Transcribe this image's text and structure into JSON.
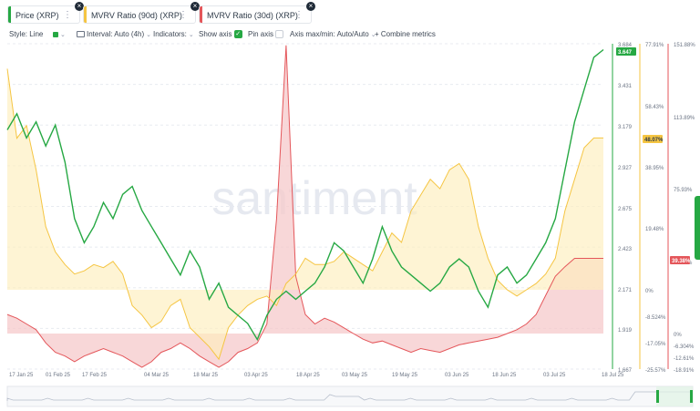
{
  "tabs": [
    {
      "label": "Price (XRP)",
      "color": "#26a843"
    },
    {
      "label": "MVRV Ratio (90d) (XRP)",
      "color": "#f5c542"
    },
    {
      "label": "MVRV Ratio (30d) (XRP)",
      "color": "#e4565a"
    }
  ],
  "toolbar": {
    "style": "Style: Line",
    "interval": "Interval: Auto (4h)",
    "indicators": "Indicators:",
    "show_axis": "Show axis",
    "pin_axis": "Pin axis",
    "axis_maxmin": "Axis max/min: Auto/Auto",
    "combine": "Combine metrics"
  },
  "watermark": "santiment",
  "chart_data": {
    "type": "line",
    "x_tick_labels": [
      "17 Jan 25",
      "01 Feb 25",
      "17 Feb 25",
      "04 Mar 25",
      "18 Mar 25",
      "03 Apr 25",
      "18 Apr 25",
      "03 May 25",
      "19 May 25",
      "03 Jun 25",
      "18 Jun 25",
      "03 Jul 25",
      "18 Jul 25"
    ],
    "axes": [
      {
        "name": "Price (XRP)",
        "color": "#26a843",
        "ticks": [
          "3.684",
          "3.431",
          "3.179",
          "2.927",
          "2.675",
          "2.423",
          "2.171",
          "1.919",
          "1.667"
        ],
        "range": [
          1.667,
          3.684
        ],
        "current_label": "3.647"
      },
      {
        "name": "MVRV Ratio (90d) (XRP)",
        "color": "#f5c542",
        "ticks": [
          "77.91%",
          "58.43%",
          "38.95%",
          "19.48%",
          "0%",
          "-8.524%",
          "-17.05%",
          "-25.57%"
        ],
        "current_label": "48.07%"
      },
      {
        "name": "MVRV Ratio (30d) (XRP)",
        "color": "#e4565a",
        "ticks": [
          "151.88%",
          "113.89%",
          "75.93%",
          "37.96%",
          "0%",
          "-6.304%",
          "-12.61%",
          "-18.91%"
        ],
        "current_label": "39.38%"
      }
    ],
    "series": [
      {
        "name": "Price (XRP)",
        "color": "#26a843",
        "values": [
          3.15,
          3.25,
          3.1,
          3.2,
          3.05,
          3.18,
          2.95,
          2.6,
          2.45,
          2.55,
          2.7,
          2.6,
          2.75,
          2.8,
          2.65,
          2.55,
          2.45,
          2.35,
          2.25,
          2.4,
          2.3,
          2.1,
          2.2,
          2.05,
          2.0,
          1.95,
          1.85,
          2.0,
          2.1,
          2.15,
          2.1,
          2.15,
          2.2,
          2.3,
          2.45,
          2.4,
          2.3,
          2.2,
          2.35,
          2.55,
          2.4,
          2.3,
          2.25,
          2.2,
          2.15,
          2.2,
          2.3,
          2.35,
          2.3,
          2.15,
          2.05,
          2.25,
          2.3,
          2.2,
          2.25,
          2.35,
          2.45,
          2.6,
          2.9,
          3.2,
          3.4,
          3.6,
          3.647
        ]
      },
      {
        "name": "MVRV Ratio (90d) (XRP)",
        "color": "#f5c542",
        "values": [
          70,
          48,
          52,
          38,
          20,
          12,
          8,
          5,
          6,
          8,
          7,
          9,
          5,
          -5,
          -8,
          -12,
          -10,
          -5,
          -3,
          -12,
          -15,
          -18,
          -22,
          -12,
          -8,
          -5,
          -3,
          -2,
          -5,
          2,
          5,
          10,
          8,
          8,
          9,
          12,
          10,
          8,
          6,
          12,
          18,
          15,
          25,
          30,
          35,
          32,
          38,
          40,
          35,
          20,
          10,
          3,
          0,
          -2,
          0,
          2,
          5,
          10,
          25,
          35,
          45,
          48.07,
          48.07
        ]
      },
      {
        "name": "MVRV Ratio (30d) (XRP)",
        "color": "#e4565a",
        "values": [
          10,
          8,
          5,
          2,
          -5,
          -10,
          -12,
          -15,
          -12,
          -10,
          -8,
          -10,
          -12,
          -15,
          -18,
          -15,
          -10,
          -8,
          -5,
          -8,
          -12,
          -15,
          -18,
          -15,
          -10,
          -8,
          -5,
          5,
          60,
          151,
          30,
          10,
          5,
          8,
          6,
          3,
          0,
          -3,
          -5,
          -4,
          -6,
          -8,
          -10,
          -8,
          -9,
          -10,
          -8,
          -6,
          -5,
          -4,
          -3,
          -2,
          0,
          2,
          5,
          10,
          20,
          30,
          35,
          39.38,
          39.38,
          39.38,
          39.38
        ]
      }
    ]
  }
}
